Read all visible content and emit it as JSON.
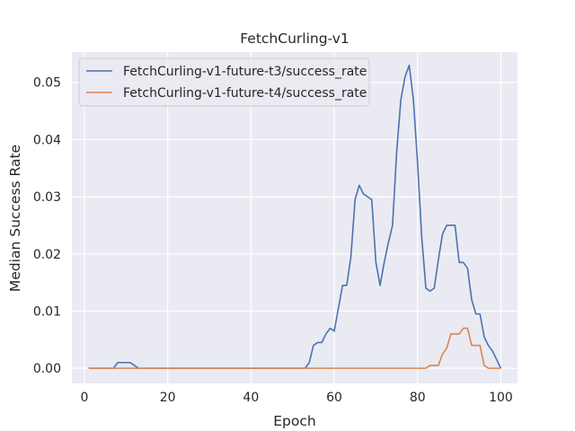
{
  "chart_data": {
    "type": "line",
    "title": "FetchCurling-v1",
    "xlabel": "Epoch",
    "ylabel": "Median Success Rate",
    "xlim": [
      -3,
      104
    ],
    "ylim": [
      -0.00265,
      0.0553
    ],
    "xticks": [
      0,
      20,
      40,
      60,
      80,
      100
    ],
    "xtick_labels": [
      "0",
      "20",
      "40",
      "60",
      "80",
      "100"
    ],
    "yticks": [
      0.0,
      0.01,
      0.02,
      0.03,
      0.04,
      0.05
    ],
    "ytick_labels": [
      "0.00",
      "0.01",
      "0.02",
      "0.03",
      "0.04",
      "0.05"
    ],
    "grid": true,
    "legend": "upper-left",
    "background": "#eaeaf2",
    "series": [
      {
        "name": "FetchCurling-v1-future-t3/success_rate",
        "color": "#4c72b0",
        "x": [
          1,
          7,
          8,
          11,
          12,
          13,
          53,
          54,
          55,
          56,
          57,
          58,
          59,
          60,
          61,
          62,
          63,
          64,
          65,
          66,
          67,
          68,
          69,
          70,
          71,
          72,
          73,
          74,
          75,
          76,
          77,
          78,
          79,
          80,
          81,
          82,
          83,
          84,
          85,
          86,
          87,
          88,
          89,
          90,
          91,
          92,
          93,
          94,
          95,
          96,
          97,
          98,
          99,
          100
        ],
        "y": [
          0,
          0,
          0.001,
          0.001,
          0.0005,
          0,
          0,
          0.001,
          0.004,
          0.0045,
          0.0045,
          0.006,
          0.007,
          0.0065,
          0.0105,
          0.0145,
          0.0145,
          0.0195,
          0.0295,
          0.032,
          0.0305,
          0.03,
          0.0295,
          0.0185,
          0.0145,
          0.0185,
          0.022,
          0.025,
          0.038,
          0.047,
          0.051,
          0.053,
          0.047,
          0.036,
          0.023,
          0.014,
          0.0135,
          0.014,
          0.019,
          0.0235,
          0.025,
          0.025,
          0.025,
          0.0185,
          0.0185,
          0.0175,
          0.012,
          0.0095,
          0.0095,
          0.0055,
          0.004,
          0.003,
          0.0015,
          0
        ]
      },
      {
        "name": "FetchCurling-v1-future-t4/success_rate",
        "color": "#dd8452",
        "x": [
          1,
          82,
          83,
          84,
          85,
          86,
          87,
          88,
          89,
          90,
          91,
          92,
          93,
          94,
          95,
          96,
          97,
          98,
          99,
          100
        ],
        "y": [
          0,
          0,
          0.0005,
          0.0005,
          0.0005,
          0.0025,
          0.0035,
          0.006,
          0.006,
          0.006,
          0.007,
          0.007,
          0.004,
          0.004,
          0.004,
          0.0005,
          0,
          0,
          0,
          0
        ]
      }
    ]
  }
}
